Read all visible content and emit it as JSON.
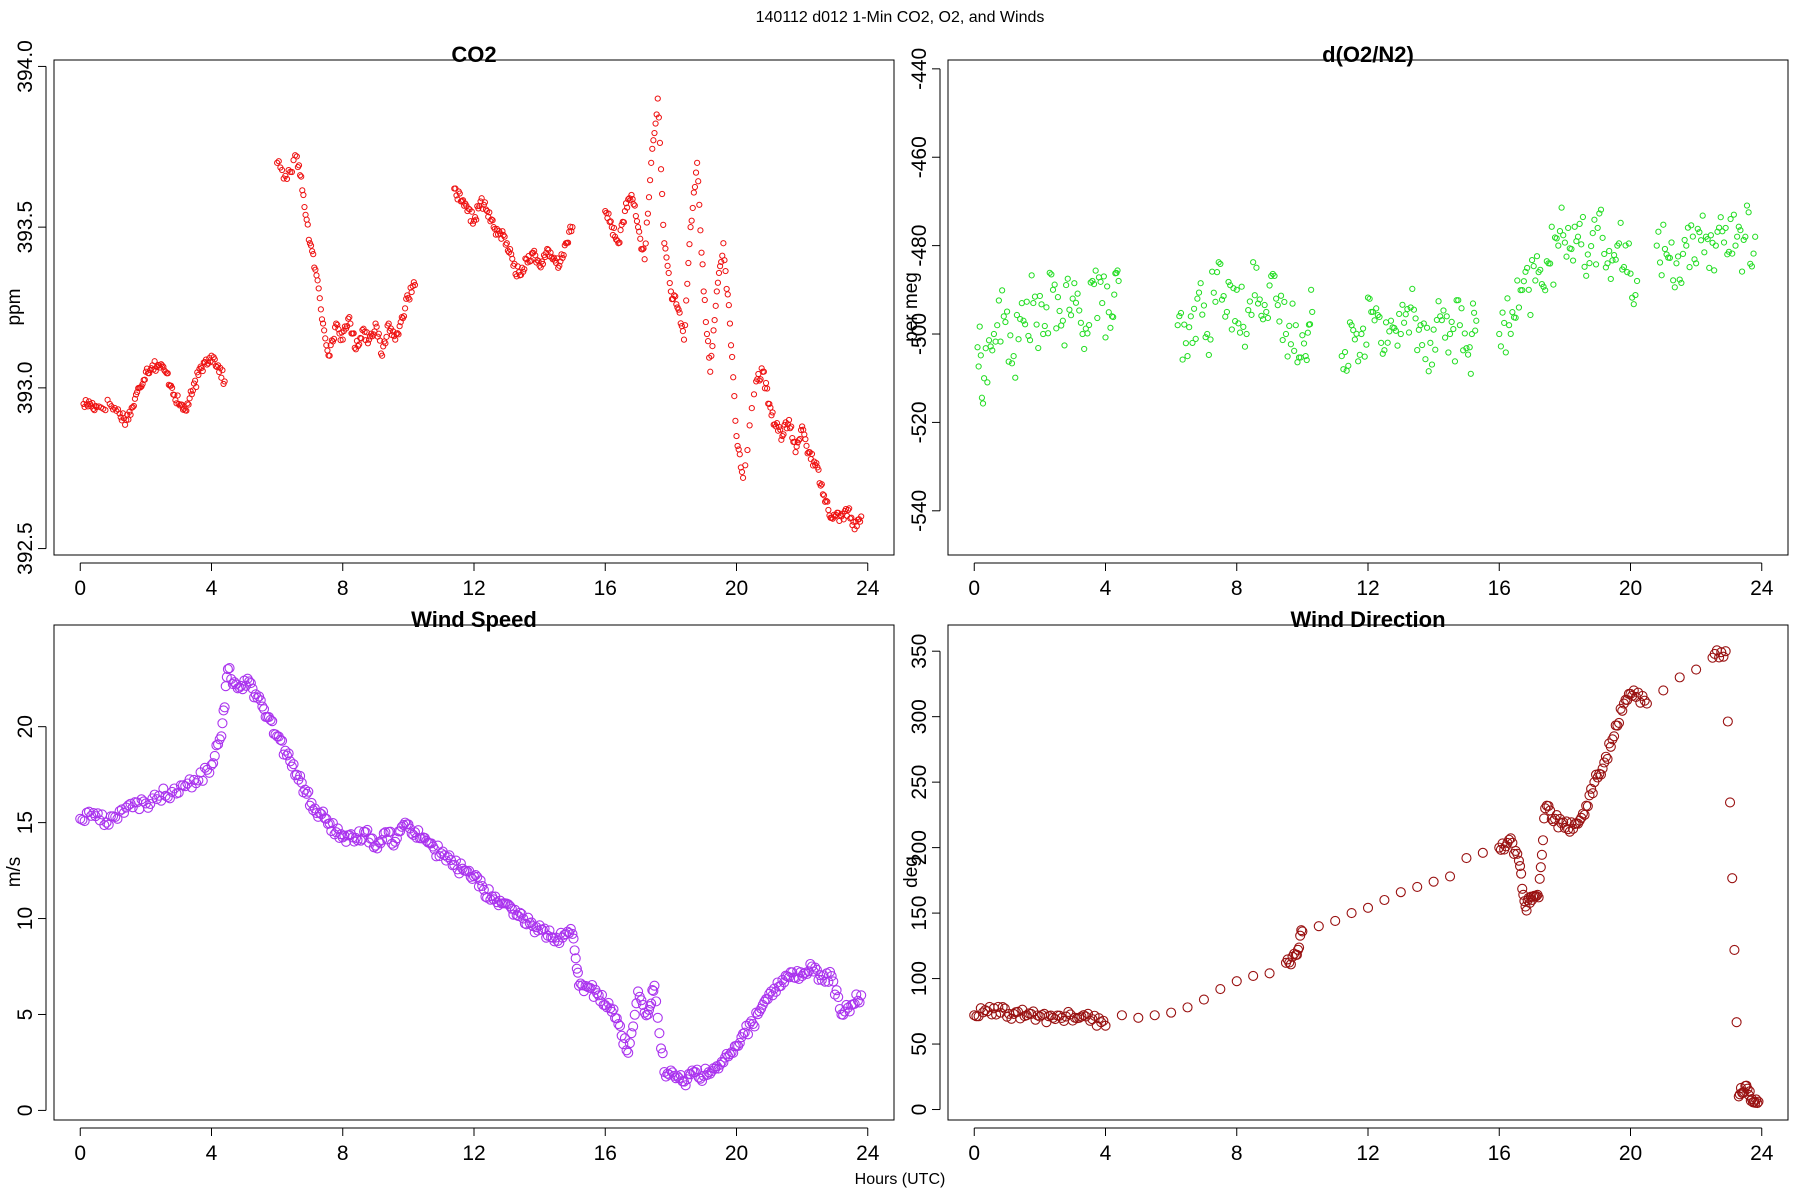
{
  "figure": {
    "suptitle": "140112   d012   1-Min CO2, O2, and Winds",
    "xlabel": "Hours (UTC)"
  },
  "chart_data": [
    {
      "id": "co2",
      "type": "scatter",
      "title": "CO2",
      "xlabel": "",
      "ylabel": "ppm",
      "xlim": [
        -0.8,
        24.8
      ],
      "ylim": [
        392.48,
        394.02
      ],
      "xticks": [
        0,
        4,
        8,
        12,
        16,
        20,
        24
      ],
      "yticks": [
        392.5,
        393.0,
        393.5,
        394.0
      ],
      "ytick_labels": [
        "392.5",
        "393.0",
        "393.5",
        "394.0"
      ],
      "color": "#ee1111",
      "marker": "open-circle-small",
      "series_points": [
        [
          0.1,
          392.95
        ],
        [
          0.3,
          392.95
        ],
        [
          0.5,
          392.94
        ],
        [
          0.9,
          392.95
        ],
        [
          1.2,
          392.92
        ],
        [
          1.4,
          392.9
        ],
        [
          1.6,
          392.94
        ],
        [
          1.8,
          393.0
        ],
        [
          2.0,
          393.05
        ],
        [
          2.2,
          393.07
        ],
        [
          2.4,
          393.07
        ],
        [
          2.6,
          393.05
        ],
        [
          2.8,
          393.0
        ],
        [
          3.0,
          392.95
        ],
        [
          3.2,
          392.93
        ],
        [
          3.4,
          392.98
        ],
        [
          3.6,
          393.04
        ],
        [
          3.8,
          393.08
        ],
        [
          4.0,
          393.1
        ],
        [
          4.2,
          393.07
        ],
        [
          4.4,
          393.02
        ],
        [
          6.0,
          393.7
        ],
        [
          6.3,
          393.65
        ],
        [
          6.6,
          393.72
        ],
        [
          6.8,
          393.6
        ],
        [
          7.0,
          393.45
        ],
        [
          7.2,
          393.35
        ],
        [
          7.4,
          393.2
        ],
        [
          7.6,
          393.1
        ],
        [
          7.8,
          393.2
        ],
        [
          8.0,
          393.15
        ],
        [
          8.2,
          393.22
        ],
        [
          8.4,
          393.12
        ],
        [
          8.6,
          393.18
        ],
        [
          8.8,
          393.15
        ],
        [
          9.0,
          393.2
        ],
        [
          9.2,
          393.1
        ],
        [
          9.4,
          393.2
        ],
        [
          9.6,
          393.15
        ],
        [
          9.8,
          393.22
        ],
        [
          10.0,
          393.28
        ],
        [
          10.2,
          393.32
        ],
        [
          11.4,
          393.62
        ],
        [
          11.6,
          393.58
        ],
        [
          11.8,
          393.55
        ],
        [
          12.0,
          393.52
        ],
        [
          12.2,
          393.58
        ],
        [
          12.4,
          393.55
        ],
        [
          12.6,
          393.5
        ],
        [
          12.8,
          393.48
        ],
        [
          13.0,
          393.45
        ],
        [
          13.2,
          393.38
        ],
        [
          13.4,
          393.35
        ],
        [
          13.6,
          393.4
        ],
        [
          13.8,
          393.42
        ],
        [
          14.0,
          393.38
        ],
        [
          14.2,
          393.42
        ],
        [
          14.4,
          393.4
        ],
        [
          14.6,
          393.38
        ],
        [
          14.8,
          393.45
        ],
        [
          15.0,
          393.5
        ],
        [
          16.0,
          393.55
        ],
        [
          16.2,
          393.5
        ],
        [
          16.4,
          393.45
        ],
        [
          16.6,
          393.55
        ],
        [
          16.8,
          393.6
        ],
        [
          17.0,
          393.5
        ],
        [
          17.2,
          393.4
        ],
        [
          17.4,
          393.7
        ],
        [
          17.6,
          393.9
        ],
        [
          17.8,
          393.45
        ],
        [
          18.0,
          393.3
        ],
        [
          18.2,
          393.25
        ],
        [
          18.4,
          393.15
        ],
        [
          18.6,
          393.5
        ],
        [
          18.8,
          393.7
        ],
        [
          19.0,
          393.3
        ],
        [
          19.2,
          393.05
        ],
        [
          19.4,
          393.3
        ],
        [
          19.6,
          393.45
        ],
        [
          19.8,
          393.2
        ],
        [
          20.0,
          392.85
        ],
        [
          20.2,
          392.72
        ],
        [
          20.6,
          393.02
        ],
        [
          20.8,
          393.05
        ],
        [
          21.0,
          392.95
        ],
        [
          21.2,
          392.88
        ],
        [
          21.4,
          392.85
        ],
        [
          21.6,
          392.9
        ],
        [
          21.8,
          392.8
        ],
        [
          22.0,
          392.88
        ],
        [
          22.2,
          392.8
        ],
        [
          22.4,
          392.76
        ],
        [
          22.6,
          392.7
        ],
        [
          22.8,
          392.62
        ],
        [
          23.0,
          392.6
        ],
        [
          23.2,
          392.6
        ],
        [
          23.4,
          392.62
        ],
        [
          23.6,
          392.56
        ],
        [
          23.8,
          392.6
        ]
      ]
    },
    {
      "id": "o2",
      "type": "scatter",
      "title": "d(O2/N2)",
      "xlabel": "",
      "ylabel": "per meg",
      "xlim": [
        -0.8,
        24.8
      ],
      "ylim": [
        -550,
        -438
      ],
      "xticks": [
        0,
        4,
        8,
        12,
        16,
        20,
        24
      ],
      "yticks": [
        -540,
        -520,
        -500,
        -480,
        -460,
        -440
      ],
      "ytick_labels": [
        "-540",
        "-520",
        "-500",
        "-480",
        "-460",
        "-440"
      ],
      "color": "#22dd22",
      "marker": "open-circle-small",
      "series_points": [
        [
          0.1,
          -503
        ],
        [
          0.3,
          -510
        ],
        [
          0.6,
          -500
        ],
        [
          0.9,
          -496
        ],
        [
          1.2,
          -505
        ],
        [
          1.5,
          -497
        ],
        [
          1.8,
          -493
        ],
        [
          2.1,
          -500
        ],
        [
          2.4,
          -490
        ],
        [
          2.7,
          -497
        ],
        [
          3.0,
          -492
        ],
        [
          3.3,
          -500
        ],
        [
          3.6,
          -488
        ],
        [
          3.9,
          -493
        ],
        [
          4.2,
          -496
        ],
        [
          4.4,
          -488
        ],
        [
          6.2,
          -498
        ],
        [
          6.5,
          -505
        ],
        [
          6.8,
          -492
        ],
        [
          7.1,
          -500
        ],
        [
          7.4,
          -486
        ],
        [
          7.7,
          -495
        ],
        [
          8.0,
          -490
        ],
        [
          8.3,
          -500
        ],
        [
          8.6,
          -485
        ],
        [
          8.9,
          -495
        ],
        [
          9.2,
          -492
        ],
        [
          9.5,
          -500
        ],
        [
          9.8,
          -498
        ],
        [
          10.1,
          -505
        ],
        [
          10.3,
          -495
        ],
        [
          11.2,
          -505
        ],
        [
          11.5,
          -498
        ],
        [
          11.8,
          -500
        ],
        [
          12.1,
          -495
        ],
        [
          12.4,
          -502
        ],
        [
          12.7,
          -497
        ],
        [
          13.0,
          -500
        ],
        [
          13.3,
          -494
        ],
        [
          13.6,
          -498
        ],
        [
          13.9,
          -502
        ],
        [
          14.2,
          -496
        ],
        [
          14.5,
          -500
        ],
        [
          14.8,
          -498
        ],
        [
          15.1,
          -503
        ],
        [
          15.3,
          -497
        ],
        [
          16.0,
          -500
        ],
        [
          16.3,
          -498
        ],
        [
          16.6,
          -494
        ],
        [
          16.9,
          -490
        ],
        [
          17.2,
          -486
        ],
        [
          17.5,
          -484
        ],
        [
          17.8,
          -480
        ],
        [
          18.1,
          -476
        ],
        [
          18.4,
          -478
        ],
        [
          18.7,
          -482
        ],
        [
          19.0,
          -476
        ],
        [
          19.3,
          -484
        ],
        [
          19.6,
          -480
        ],
        [
          19.9,
          -486
        ],
        [
          20.2,
          -488
        ],
        [
          20.8,
          -480
        ],
        [
          21.1,
          -482
        ],
        [
          21.4,
          -484
        ],
        [
          21.7,
          -480
        ],
        [
          22.0,
          -484
        ],
        [
          22.3,
          -478
        ],
        [
          22.6,
          -480
        ],
        [
          22.9,
          -476
        ],
        [
          23.2,
          -480
        ],
        [
          23.5,
          -478
        ],
        [
          23.8,
          -478
        ]
      ]
    },
    {
      "id": "wspd",
      "type": "scatter",
      "title": "Wind Speed",
      "xlabel": "",
      "ylabel": "m/s",
      "xlim": [
        -0.8,
        24.8
      ],
      "ylim": [
        -0.5,
        25.3
      ],
      "xticks": [
        0,
        4,
        8,
        12,
        16,
        20,
        24
      ],
      "yticks": [
        0,
        5,
        10,
        15,
        20
      ],
      "ytick_labels": [
        "0",
        "5",
        "10",
        "15",
        "20"
      ],
      "color": "#aa33ee",
      "marker": "open-circle-large",
      "series_points": [
        [
          0.0,
          15.2
        ],
        [
          0.4,
          15.5
        ],
        [
          0.8,
          15.0
        ],
        [
          1.2,
          15.6
        ],
        [
          1.6,
          15.8
        ],
        [
          2.0,
          16.0
        ],
        [
          2.4,
          16.4
        ],
        [
          2.8,
          16.6
        ],
        [
          3.2,
          16.9
        ],
        [
          3.6,
          17.2
        ],
        [
          4.0,
          18.0
        ],
        [
          4.3,
          19.5
        ],
        [
          4.5,
          23.0
        ],
        [
          4.8,
          22.0
        ],
        [
          5.1,
          22.5
        ],
        [
          5.4,
          21.5
        ],
        [
          5.7,
          20.5
        ],
        [
          6.0,
          19.5
        ],
        [
          6.3,
          18.5
        ],
        [
          6.6,
          17.5
        ],
        [
          6.9,
          16.5
        ],
        [
          7.2,
          15.5
        ],
        [
          7.5,
          15.2
        ],
        [
          7.8,
          14.5
        ],
        [
          8.1,
          14.0
        ],
        [
          8.4,
          14.2
        ],
        [
          8.7,
          14.5
        ],
        [
          9.0,
          13.8
        ],
        [
          9.3,
          14.5
        ],
        [
          9.6,
          14.0
        ],
        [
          9.9,
          15.0
        ],
        [
          10.2,
          14.5
        ],
        [
          10.5,
          14.2
        ],
        [
          10.8,
          13.6
        ],
        [
          11.1,
          13.3
        ],
        [
          11.4,
          12.8
        ],
        [
          11.7,
          12.5
        ],
        [
          12.0,
          12.2
        ],
        [
          12.3,
          11.5
        ],
        [
          12.6,
          11.0
        ],
        [
          12.9,
          10.8
        ],
        [
          13.2,
          10.2
        ],
        [
          13.5,
          10.0
        ],
        [
          13.8,
          9.6
        ],
        [
          14.1,
          9.4
        ],
        [
          14.4,
          9.0
        ],
        [
          14.7,
          9.0
        ],
        [
          15.0,
          9.2
        ],
        [
          15.2,
          6.5
        ],
        [
          15.5,
          6.4
        ],
        [
          15.8,
          6.0
        ],
        [
          16.1,
          5.6
        ],
        [
          16.4,
          4.5
        ],
        [
          16.7,
          3.0
        ],
        [
          17.0,
          6.2
        ],
        [
          17.3,
          5.0
        ],
        [
          17.5,
          6.5
        ],
        [
          17.8,
          2.0
        ],
        [
          18.1,
          1.8
        ],
        [
          18.4,
          1.5
        ],
        [
          18.7,
          2.0
        ],
        [
          19.0,
          1.8
        ],
        [
          19.3,
          2.2
        ],
        [
          19.6,
          2.5
        ],
        [
          19.9,
          3.0
        ],
        [
          20.2,
          4.0
        ],
        [
          20.5,
          4.5
        ],
        [
          20.8,
          5.5
        ],
        [
          21.1,
          6.0
        ],
        [
          21.4,
          6.8
        ],
        [
          21.7,
          7.2
        ],
        [
          22.0,
          7.0
        ],
        [
          22.3,
          7.5
        ],
        [
          22.6,
          6.8
        ],
        [
          22.9,
          7.0
        ],
        [
          23.2,
          5.0
        ],
        [
          23.5,
          5.5
        ],
        [
          23.8,
          6.0
        ]
      ]
    },
    {
      "id": "wdir",
      "type": "scatter",
      "title": "Wind Direction",
      "xlabel": "",
      "ylabel": "deg",
      "xlim": [
        -0.8,
        24.8
      ],
      "ylim": [
        -8,
        370
      ],
      "xticks": [
        0,
        4,
        8,
        12,
        16,
        20,
        24
      ],
      "yticks": [
        0,
        50,
        100,
        150,
        200,
        250,
        300,
        350
      ],
      "ytick_labels": [
        "0",
        "50",
        "100",
        "150",
        "200",
        "250",
        "300",
        "350"
      ],
      "color": "#991111",
      "marker": "open-circle-large",
      "series_points": [
        [
          0.0,
          72
        ],
        [
          0.4,
          75
        ],
        [
          0.8,
          74
        ],
        [
          1.2,
          73
        ],
        [
          1.6,
          72
        ],
        [
          2.0,
          71
        ],
        [
          2.4,
          70
        ],
        [
          2.8,
          71
        ],
        [
          3.2,
          70
        ],
        [
          3.6,
          69
        ],
        [
          4.0,
          64
        ],
        [
          4.5,
          72
        ],
        [
          5.0,
          70
        ],
        [
          5.5,
          72
        ],
        [
          6.0,
          74
        ],
        [
          6.5,
          78
        ],
        [
          7.0,
          84
        ],
        [
          7.5,
          92
        ],
        [
          8.0,
          98
        ],
        [
          8.5,
          102
        ],
        [
          9.0,
          104
        ],
        [
          9.5,
          112
        ],
        [
          9.8,
          118
        ],
        [
          10.0,
          136
        ],
        [
          10.5,
          140
        ],
        [
          11.0,
          144
        ],
        [
          11.5,
          150
        ],
        [
          12.0,
          154
        ],
        [
          12.5,
          160
        ],
        [
          13.0,
          166
        ],
        [
          13.5,
          170
        ],
        [
          14.0,
          174
        ],
        [
          14.5,
          178
        ],
        [
          15.0,
          192
        ],
        [
          15.5,
          196
        ],
        [
          16.0,
          200
        ],
        [
          16.3,
          206
        ],
        [
          16.6,
          190
        ],
        [
          16.8,
          155
        ],
        [
          17.0,
          160
        ],
        [
          17.2,
          162
        ],
        [
          17.4,
          230
        ],
        [
          17.7,
          222
        ],
        [
          18.0,
          215
        ],
        [
          18.3,
          218
        ],
        [
          18.6,
          225
        ],
        [
          18.9,
          250
        ],
        [
          19.2,
          265
        ],
        [
          19.5,
          285
        ],
        [
          19.8,
          310
        ],
        [
          20.1,
          320
        ],
        [
          20.5,
          310
        ],
        [
          21.0,
          320
        ],
        [
          21.5,
          330
        ],
        [
          22.0,
          336
        ],
        [
          22.5,
          345
        ],
        [
          22.9,
          350
        ],
        [
          23.3,
          10
        ],
        [
          23.5,
          18
        ],
        [
          23.7,
          8
        ],
        [
          23.9,
          6
        ]
      ]
    }
  ]
}
